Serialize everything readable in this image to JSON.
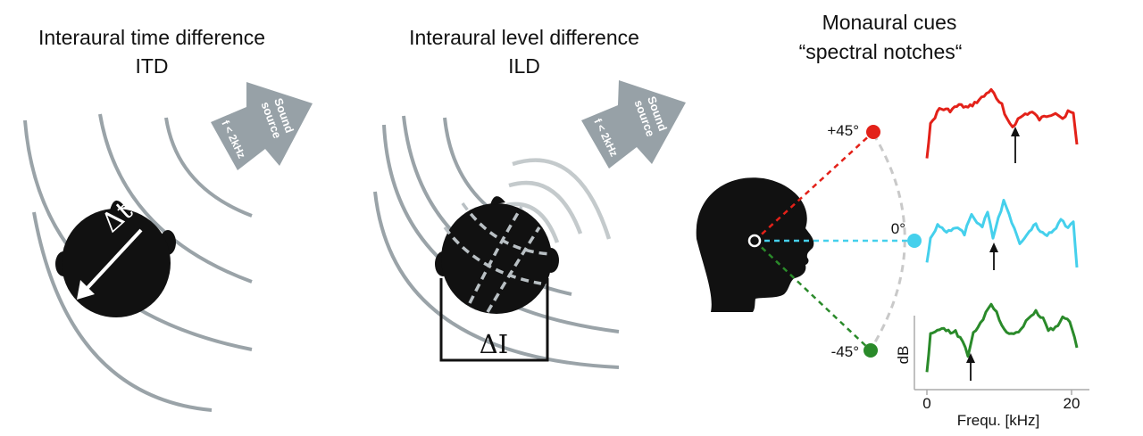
{
  "panels": {
    "itd": {
      "title_line1": "Interaural time difference",
      "title_line2": "ITD",
      "delta_label": "Δt"
    },
    "ild": {
      "title_line1": "Interaural level difference",
      "title_line2": "ILD",
      "delta_label": "ΔI"
    },
    "monaural": {
      "title_line1": "Monaural cues",
      "title_line2": "“spectral notches“"
    }
  },
  "sound_source": {
    "line1": "Sound",
    "line2": "source",
    "freq": "f < 2kHz"
  },
  "angles": {
    "up": "+45°",
    "mid": "0°",
    "down": "-45°"
  },
  "axes": {
    "ylabel": "dB",
    "xlabel": "Frequ. [kHz]",
    "tick0": "0",
    "tick20": "20"
  },
  "colors": {
    "up": "#e32119",
    "mid": "#45d0ec",
    "down": "#2a8a2a",
    "wave": "#9aa3a8",
    "head": "#111111",
    "speaker": "#97a1a7"
  }
}
